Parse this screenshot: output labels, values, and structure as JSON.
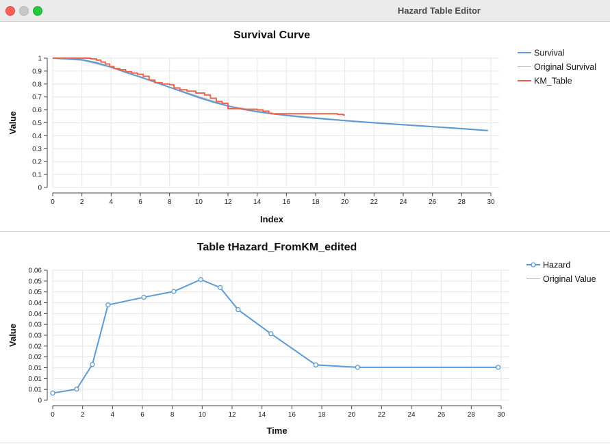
{
  "window": {
    "title": "Hazard Table Editor"
  },
  "chart_data": [
    {
      "type": "line",
      "title": "Survival Curve",
      "xlabel": "Index",
      "ylabel": "Value",
      "xlim": [
        0,
        30
      ],
      "ylim": [
        0,
        1
      ],
      "xticks": [
        "0",
        "2",
        "4",
        "6",
        "8",
        "10",
        "12",
        "14",
        "16",
        "18",
        "20",
        "22",
        "24",
        "26",
        "28",
        "30"
      ],
      "yticks": [
        "0",
        "0.1",
        "0.2",
        "0.3",
        "0.4",
        "0.5",
        "0.6",
        "0.7",
        "0.8",
        "0.9",
        "1"
      ],
      "grid": true,
      "legend_position": "right",
      "series": [
        {
          "name": "Survival",
          "color": "#5b9bd5",
          "points": [
            [
              0,
              1.0
            ],
            [
              1,
              0.995
            ],
            [
              2,
              0.988
            ],
            [
              3,
              0.965
            ],
            [
              4,
              0.93
            ],
            [
              5,
              0.89
            ],
            [
              6,
              0.855
            ],
            [
              7,
              0.815
            ],
            [
              8,
              0.775
            ],
            [
              9,
              0.735
            ],
            [
              10,
              0.695
            ],
            [
              11,
              0.66
            ],
            [
              12,
              0.63
            ],
            [
              13,
              0.605
            ],
            [
              14,
              0.585
            ],
            [
              15,
              0.57
            ],
            [
              16,
              0.557
            ],
            [
              17,
              0.545
            ],
            [
              18,
              0.535
            ],
            [
              19,
              0.526
            ],
            [
              20,
              0.517
            ],
            [
              22,
              0.5
            ],
            [
              24,
              0.485
            ],
            [
              26,
              0.47
            ],
            [
              28,
              0.455
            ],
            [
              29.8,
              0.44
            ]
          ]
        },
        {
          "name": "Original Survival",
          "color": "#b8b8b8",
          "points": [
            [
              0,
              1.0
            ],
            [
              2,
              0.985
            ],
            [
              4,
              0.93
            ],
            [
              8,
              0.775
            ],
            [
              12,
              0.63
            ],
            [
              15,
              0.57
            ],
            [
              20,
              0.517
            ],
            [
              29.8,
              0.44
            ]
          ]
        },
        {
          "name": "KM_Table",
          "color": "#f0624a",
          "step": true,
          "points": [
            [
              0,
              1.0
            ],
            [
              2.2,
              1.0
            ],
            [
              2.6,
              0.995
            ],
            [
              3.0,
              0.985
            ],
            [
              3.3,
              0.97
            ],
            [
              3.6,
              0.955
            ],
            [
              3.9,
              0.935
            ],
            [
              4.2,
              0.92
            ],
            [
              4.6,
              0.91
            ],
            [
              5.0,
              0.895
            ],
            [
              5.4,
              0.885
            ],
            [
              5.8,
              0.875
            ],
            [
              6.2,
              0.86
            ],
            [
              6.6,
              0.83
            ],
            [
              7.0,
              0.81
            ],
            [
              7.5,
              0.8
            ],
            [
              8.0,
              0.795
            ],
            [
              8.3,
              0.77
            ],
            [
              8.7,
              0.755
            ],
            [
              9.2,
              0.745
            ],
            [
              9.8,
              0.73
            ],
            [
              10.4,
              0.715
            ],
            [
              10.8,
              0.69
            ],
            [
              11.2,
              0.665
            ],
            [
              11.6,
              0.65
            ],
            [
              12.0,
              0.61
            ],
            [
              13.0,
              0.605
            ],
            [
              14.0,
              0.6
            ],
            [
              14.4,
              0.59
            ],
            [
              14.8,
              0.575
            ],
            [
              15.0,
              0.57
            ],
            [
              19.5,
              0.565
            ],
            [
              19.9,
              0.56
            ],
            [
              20.0,
              0.56
            ]
          ]
        }
      ]
    },
    {
      "type": "line",
      "title": "Table tHazard_FromKM_edited",
      "xlabel": "Time",
      "ylabel": "Value",
      "xlim": [
        0,
        30
      ],
      "ylim": [
        0,
        0.06
      ],
      "xticks": [
        "0",
        "2",
        "4",
        "6",
        "8",
        "10",
        "12",
        "14",
        "16",
        "18",
        "20",
        "22",
        "24",
        "26",
        "28",
        "30"
      ],
      "yticks": [
        "0",
        "0.01",
        "0.01",
        "0.01",
        "0.02",
        "0.02",
        "0.03",
        "0.03",
        "0.04",
        "0.04",
        "0.05",
        "0.05",
        "0.06"
      ],
      "grid": true,
      "legend_position": "right",
      "series": [
        {
          "name": "Hazard",
          "color": "#5b9bd5",
          "markers": true,
          "points": [
            [
              0,
              0.0033
            ],
            [
              1.6,
              0.0051
            ],
            [
              2.65,
              0.0165
            ],
            [
              3.7,
              0.044
            ],
            [
              6.1,
              0.0475
            ],
            [
              8.1,
              0.0502
            ],
            [
              9.9,
              0.0557
            ],
            [
              11.2,
              0.052
            ],
            [
              12.4,
              0.0418
            ],
            [
              14.6,
              0.0307
            ],
            [
              17.6,
              0.0163
            ],
            [
              20.4,
              0.0152
            ],
            [
              29.8,
              0.0152
            ]
          ]
        },
        {
          "name": "Original Value",
          "color": "#b8b8b8",
          "points": []
        }
      ]
    }
  ]
}
